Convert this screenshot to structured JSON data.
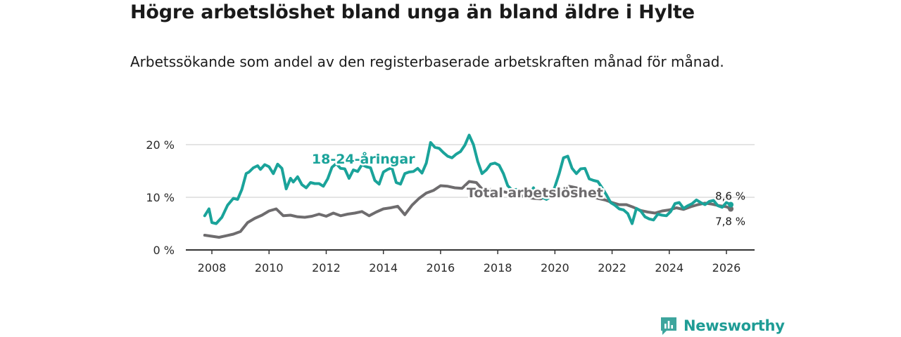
{
  "title": "Högre arbetslöshet bland unga än bland äldre i Hylte",
  "subtitle": "Arbetssökande som andel av den registerbaserade arbetskraften månad för månad.",
  "brand": {
    "name": "Newsworthy",
    "icon": "newsworthy-logo-icon",
    "color": "#1e9c95"
  },
  "chart_data": {
    "type": "line",
    "title": "",
    "xlabel": "",
    "ylabel": "",
    "xlim": [
      2007.5,
      2027.2
    ],
    "ylim": [
      0,
      20
    ],
    "grid": true,
    "x_ticks": [
      2008,
      2010,
      2012,
      2014,
      2016,
      2018,
      2020,
      2022,
      2024,
      2026
    ],
    "x_tick_labels": [
      "2008",
      "2010",
      "2012",
      "2014",
      "2016",
      "2018",
      "2020",
      "2022",
      "2024",
      "2026"
    ],
    "y_ticks": [
      0,
      10,
      20
    ],
    "y_tick_labels": [
      "0 %",
      "10 %",
      "20 %"
    ],
    "series": [
      {
        "name": "18-24-åringar",
        "color": "#1aa39a",
        "end_label": "8,6 %",
        "x": [
          2007.75,
          2007.9,
          2008.0,
          2008.15,
          2008.35,
          2008.55,
          2008.75,
          2008.9,
          2009.05,
          2009.2,
          2009.3,
          2009.45,
          2009.6,
          2009.7,
          2009.85,
          2010.0,
          2010.15,
          2010.3,
          2010.45,
          2010.6,
          2010.75,
          2010.85,
          2011.0,
          2011.15,
          2011.3,
          2011.45,
          2011.6,
          2011.75,
          2011.9,
          2012.05,
          2012.2,
          2012.35,
          2012.5,
          2012.65,
          2012.8,
          2012.95,
          2013.1,
          2013.25,
          2013.4,
          2013.55,
          2013.7,
          2013.85,
          2014.0,
          2014.15,
          2014.3,
          2014.45,
          2014.6,
          2014.75,
          2014.9,
          2015.05,
          2015.2,
          2015.35,
          2015.5,
          2015.65,
          2015.8,
          2015.95,
          2016.1,
          2016.25,
          2016.4,
          2016.55,
          2016.7,
          2016.85,
          2017.0,
          2017.15,
          2017.3,
          2017.45,
          2017.6,
          2017.75,
          2017.9,
          2018.05,
          2018.2,
          2018.35,
          2018.5,
          2018.65,
          2018.8,
          2018.95,
          2019.1,
          2019.25,
          2019.4,
          2019.55,
          2019.7,
          2019.85,
          2020.0,
          2020.15,
          2020.3,
          2020.45,
          2020.6,
          2020.75,
          2020.9,
          2021.05,
          2021.2,
          2021.35,
          2021.5,
          2021.65,
          2021.8,
          2021.95,
          2022.1,
          2022.25,
          2022.4,
          2022.55,
          2022.7,
          2022.85,
          2023.0,
          2023.15,
          2023.3,
          2023.45,
          2023.6,
          2023.75,
          2023.9,
          2024.05,
          2024.2,
          2024.35,
          2024.5,
          2024.65,
          2024.8,
          2024.95,
          2025.1,
          2025.25,
          2025.4,
          2025.55,
          2025.7,
          2025.85,
          2026.0,
          2026.15
        ],
        "y": [
          6.5,
          7.8,
          5.2,
          5.0,
          6.2,
          8.5,
          9.8,
          9.6,
          11.5,
          14.5,
          14.8,
          15.6,
          16.0,
          15.3,
          16.2,
          15.8,
          14.5,
          16.3,
          15.5,
          11.6,
          13.6,
          12.9,
          13.9,
          12.4,
          11.8,
          12.8,
          12.6,
          12.6,
          12.1,
          13.5,
          15.7,
          16.4,
          15.5,
          15.4,
          13.6,
          15.2,
          14.9,
          16.2,
          15.8,
          15.6,
          13.2,
          12.5,
          14.8,
          15.3,
          15.6,
          12.8,
          12.5,
          14.5,
          14.8,
          14.9,
          15.5,
          14.6,
          16.5,
          20.4,
          19.5,
          19.3,
          18.5,
          17.8,
          17.5,
          18.2,
          18.7,
          19.9,
          21.8,
          20.0,
          16.8,
          14.5,
          15.2,
          16.3,
          16.5,
          16.1,
          14.5,
          12.2,
          11.4,
          11.5,
          11.1,
          11.2,
          10.5,
          11.8,
          10.2,
          10.0,
          9.6,
          10.1,
          12.0,
          14.5,
          17.5,
          17.8,
          15.5,
          14.5,
          15.4,
          15.5,
          13.5,
          13.2,
          13.0,
          11.8,
          10.5,
          9.0,
          8.5,
          7.8,
          7.6,
          6.9,
          5.0,
          7.9,
          7.4,
          6.3,
          5.9,
          5.7,
          6.8,
          6.6,
          6.5,
          7.3,
          8.8,
          9.0,
          7.9,
          8.4,
          8.8,
          9.5,
          9.0,
          8.6,
          9.2,
          9.4,
          8.4,
          8.1,
          9.0,
          8.6
        ]
      },
      {
        "name": "Total arbetslöshet",
        "color": "#6e6c6e",
        "end_label": "7,8 %",
        "x": [
          2007.75,
          2008.0,
          2008.25,
          2008.5,
          2008.75,
          2009.0,
          2009.25,
          2009.5,
          2009.75,
          2010.0,
          2010.25,
          2010.5,
          2010.75,
          2011.0,
          2011.25,
          2011.5,
          2011.75,
          2012.0,
          2012.25,
          2012.5,
          2012.75,
          2013.0,
          2013.25,
          2013.5,
          2013.75,
          2014.0,
          2014.25,
          2014.5,
          2014.75,
          2015.0,
          2015.25,
          2015.5,
          2015.75,
          2016.0,
          2016.25,
          2016.5,
          2016.75,
          2017.0,
          2017.25,
          2017.5,
          2017.75,
          2018.0,
          2018.25,
          2018.5,
          2018.75,
          2019.0,
          2019.25,
          2019.5,
          2019.75,
          2020.0,
          2020.25,
          2020.5,
          2020.75,
          2021.0,
          2021.25,
          2021.5,
          2021.75,
          2022.0,
          2022.25,
          2022.5,
          2022.75,
          2023.0,
          2023.25,
          2023.5,
          2023.75,
          2024.0,
          2024.25,
          2024.5,
          2024.75,
          2025.0,
          2025.25,
          2025.5,
          2025.75,
          2026.0,
          2026.15
        ],
        "y": [
          2.8,
          2.6,
          2.4,
          2.7,
          3.0,
          3.5,
          5.2,
          6.0,
          6.6,
          7.4,
          7.8,
          6.5,
          6.6,
          6.3,
          6.2,
          6.4,
          6.8,
          6.4,
          7.0,
          6.5,
          6.8,
          7.0,
          7.3,
          6.5,
          7.2,
          7.8,
          8.0,
          8.3,
          6.7,
          8.5,
          9.8,
          10.8,
          11.3,
          12.2,
          12.1,
          11.8,
          11.7,
          13.0,
          12.8,
          11.3,
          11.5,
          11.2,
          11.0,
          10.7,
          10.4,
          10.0,
          9.8,
          9.7,
          10.3,
          11.0,
          11.5,
          12.1,
          11.8,
          11.2,
          10.4,
          9.8,
          9.5,
          9.0,
          8.6,
          8.6,
          8.1,
          7.5,
          7.2,
          7.0,
          7.4,
          7.6,
          8.0,
          7.7,
          8.2,
          8.6,
          8.9,
          8.7,
          8.4,
          8.2,
          7.8
        ]
      }
    ],
    "annotations": [
      {
        "text": "18-24-åringar",
        "series": "18-24-åringar"
      },
      {
        "text": "Total arbetslöshet",
        "series": "Total arbetslöshet"
      }
    ]
  }
}
